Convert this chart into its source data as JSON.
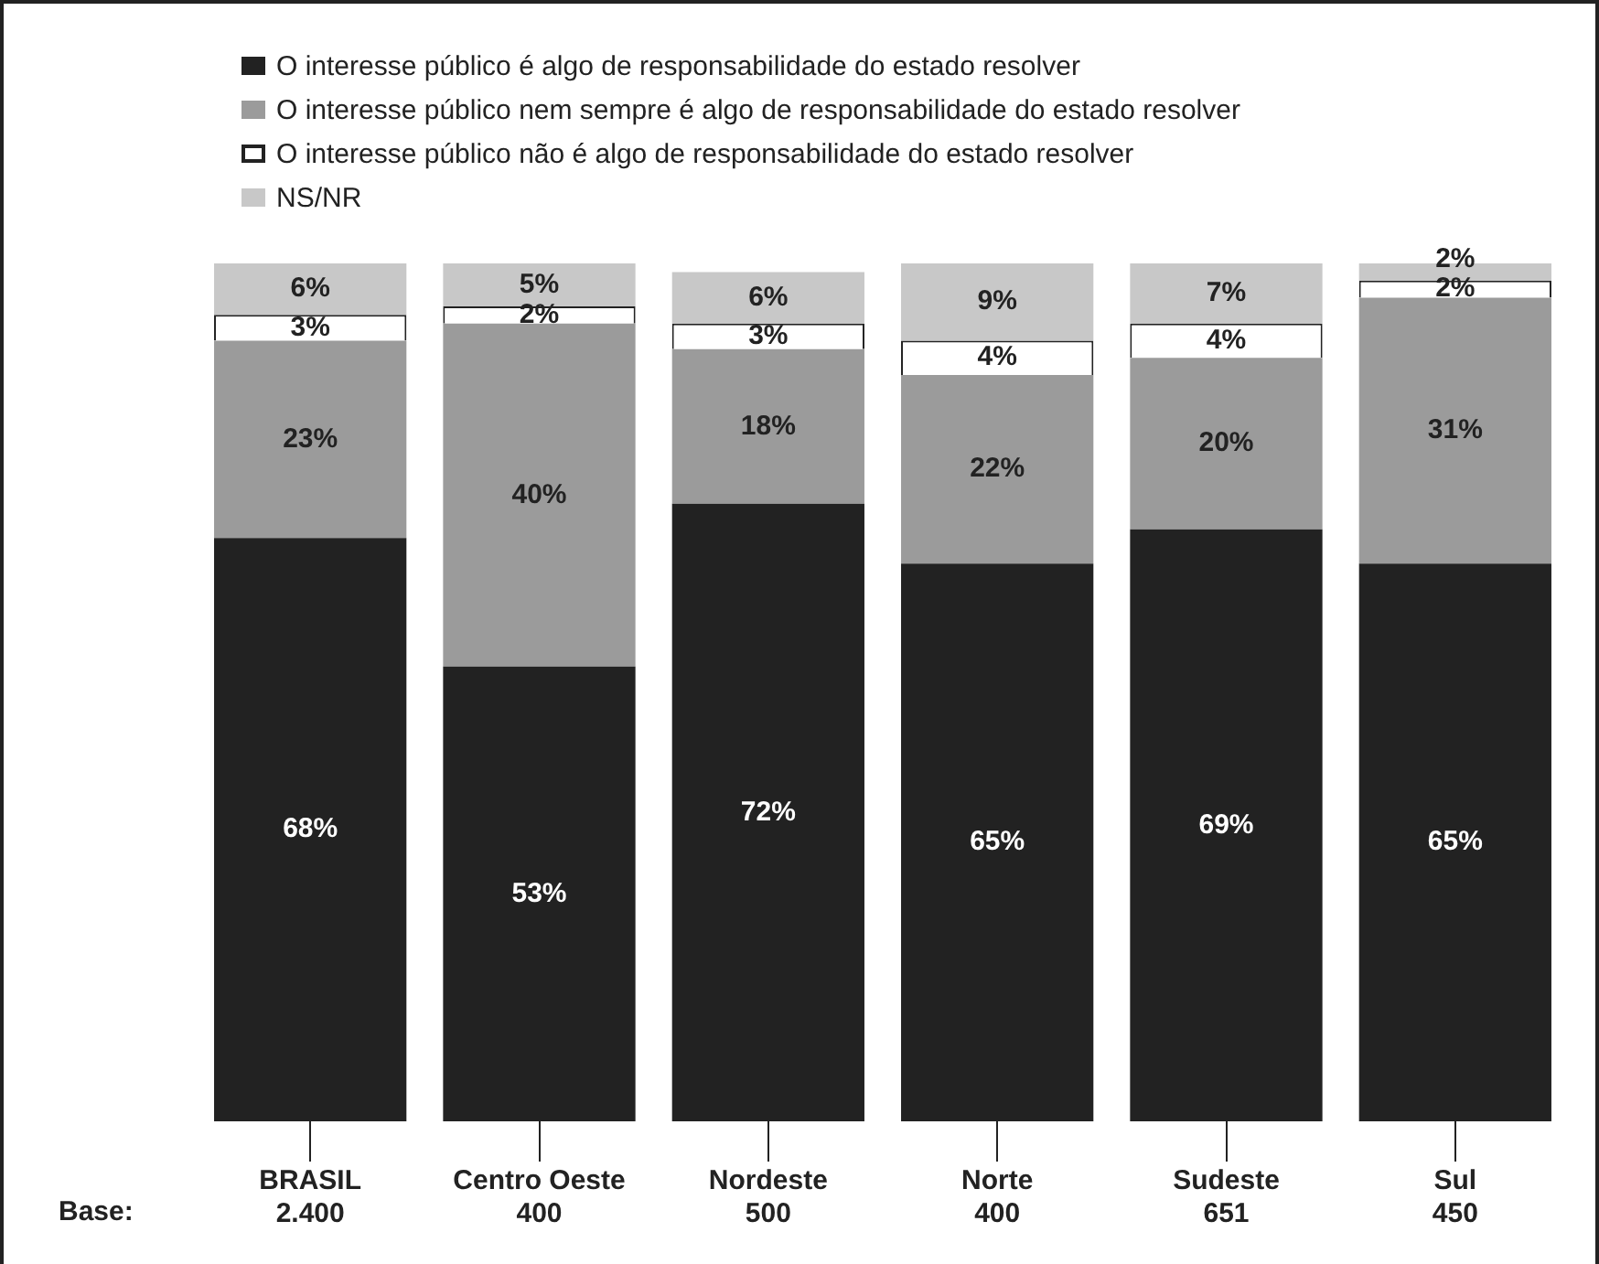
{
  "chart_data": {
    "type": "bar",
    "stacked": true,
    "categories": [
      "BRASIL\n2.400",
      "Centro Oeste\n400",
      "Nordeste\n500",
      "Norte\n400",
      "Sudeste\n651",
      "Sul\n450"
    ],
    "ylim": [
      0,
      100
    ],
    "tick_labels": "x",
    "legend": "top",
    "annotations": [
      "Base:"
    ],
    "series": [
      {
        "name": "O interesse público é algo de responsabilidade do estado resolver",
        "color": "#222222",
        "values": [
          68,
          53,
          72,
          65,
          69,
          65
        ],
        "value_labels": [
          "68%",
          "53%",
          "72%",
          "65%",
          "69%",
          "65%"
        ]
      },
      {
        "name": "O interesse público nem sempre é algo de responsabilidade do estado resolver",
        "color": "#9b9b9b",
        "values": [
          23,
          40,
          18,
          22,
          20,
          31
        ],
        "value_labels": [
          "23%",
          "40%",
          "18%",
          "22%",
          "20%",
          "31%"
        ]
      },
      {
        "name": "O interesse público não é algo de responsabilidade do estado resolver",
        "color": "#ffffff",
        "values": [
          3,
          2,
          3,
          4,
          4,
          2
        ],
        "value_labels": [
          "3%",
          "2%",
          "3%",
          "4%",
          "4%",
          "2%"
        ]
      },
      {
        "name": "NS/NR",
        "color": "#c8c8c8",
        "values": [
          6,
          5,
          6,
          9,
          7,
          2
        ],
        "value_labels": [
          "6%",
          "5%",
          "6%",
          "9%",
          "7%",
          "2%"
        ]
      }
    ]
  }
}
